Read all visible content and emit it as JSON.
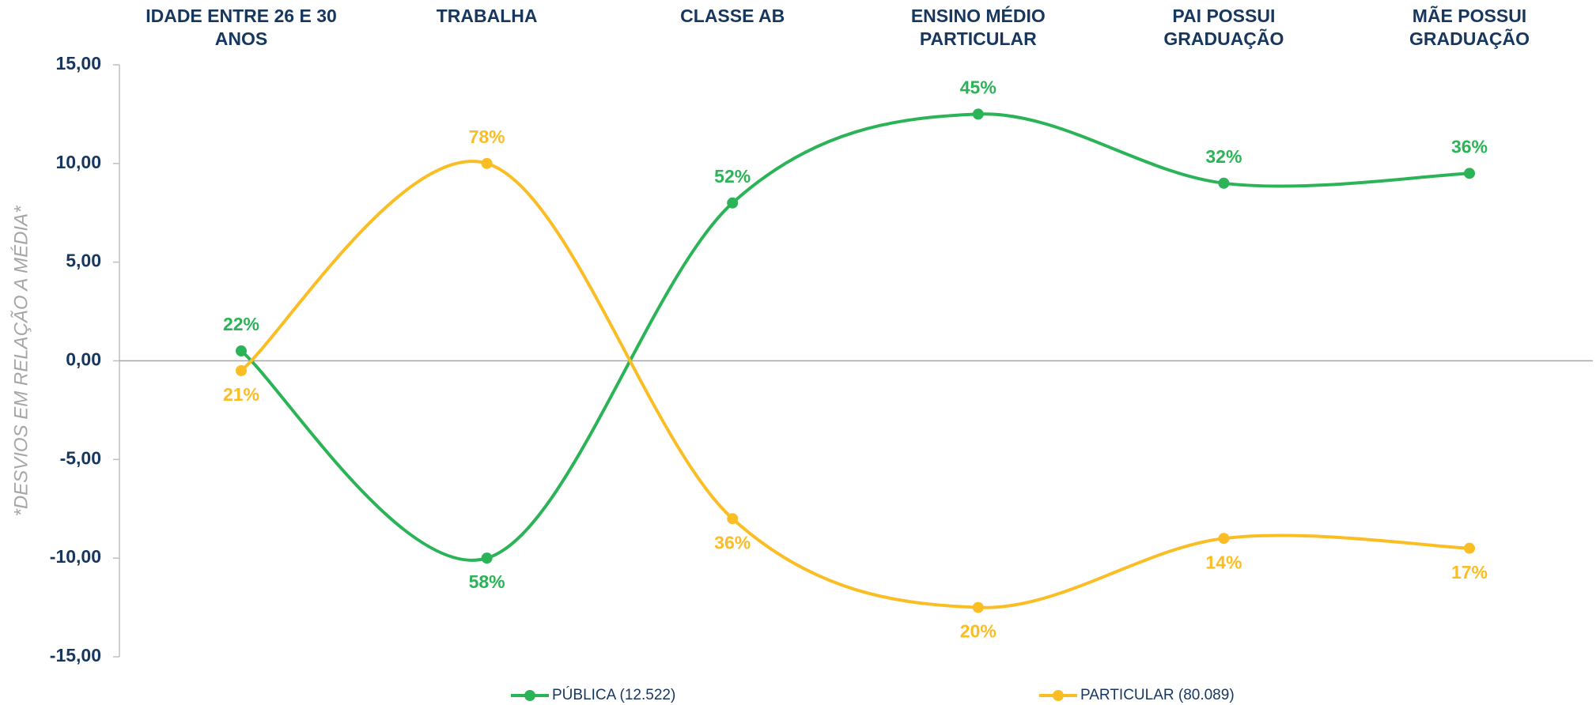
{
  "chart_data": {
    "type": "line",
    "categories": [
      "IDADE ENTRE 26 E 30 ANOS",
      "TRABALHA",
      "CLASSE AB",
      "ENSINO MÉDIO PARTICULAR",
      "PAI POSSUI GRADUAÇÃO",
      "MÃE POSSUI GRADUAÇÃO"
    ],
    "y_label": "*DESVIOS EM RELAÇÃO A MÉDIA*",
    "ylim": [
      -15,
      15
    ],
    "yticks": [
      {
        "value": -15,
        "label": "-15,00"
      },
      {
        "value": -10,
        "label": "-10,00"
      },
      {
        "value": -5,
        "label": "-5,00"
      },
      {
        "value": 0,
        "label": "0,00"
      },
      {
        "value": 5,
        "label": "5,00"
      },
      {
        "value": 10,
        "label": "10,00"
      },
      {
        "value": 15,
        "label": "15,00"
      }
    ],
    "series": [
      {
        "name": "PÚBLICA (12.522)",
        "color": "#2bb457",
        "values": [
          0.5,
          -10,
          8,
          12.5,
          9,
          9.5
        ],
        "value_labels": [
          "22%",
          "58%",
          "52%",
          "45%",
          "32%",
          "36%"
        ]
      },
      {
        "name": "PARTICULAR (80.089)",
        "color": "#fbbd24",
        "values": [
          -0.5,
          10,
          -8,
          -12.5,
          -9,
          -9.5
        ],
        "value_labels": [
          "21%",
          "78%",
          "36%",
          "20%",
          "14%",
          "17%"
        ]
      }
    ]
  }
}
